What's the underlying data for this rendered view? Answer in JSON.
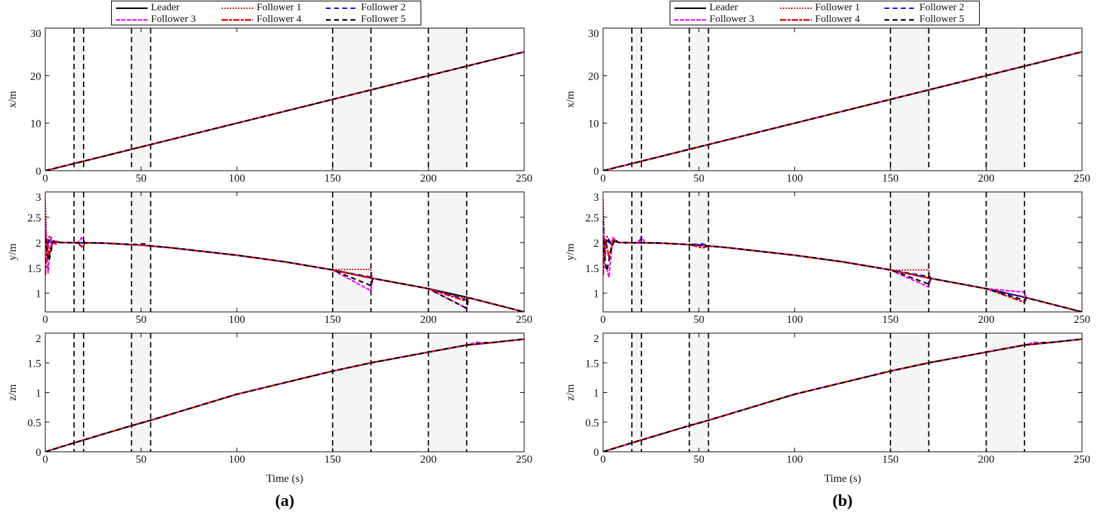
{
  "legend": [
    {
      "name": "Leader",
      "color": "#000000",
      "dash": "",
      "width": 2.2
    },
    {
      "name": "Follower 1",
      "color": "#e00000",
      "dash": "2,2",
      "width": 2
    },
    {
      "name": "Follower 2",
      "color": "#0000ff",
      "dash": "7,5",
      "width": 2
    },
    {
      "name": "Follower 3",
      "color": "#ff00ff",
      "dash": "6,2",
      "width": 2.2
    },
    {
      "name": "Follower 4",
      "color": "#e00000",
      "dash": "9,2,4,2",
      "width": 2.4
    },
    {
      "name": "Follower 5",
      "color": "#000000",
      "dash": "7,5",
      "width": 2.2
    }
  ],
  "shade_color": "#f5f5f5",
  "chart_data": [
    {
      "type": "line",
      "panel_label": "(a)",
      "xlabel": "Time (s)",
      "xlim": [
        0,
        250
      ],
      "xticks": [
        0,
        50,
        100,
        150,
        200,
        250
      ],
      "shaded_intervals": [
        [
          15,
          20
        ],
        [
          45,
          55
        ],
        [
          150,
          170
        ],
        [
          200,
          220
        ]
      ],
      "legend_placement": "top",
      "subplots": [
        {
          "ylabel": "x/m",
          "ylim": [
            0,
            30
          ],
          "yticks": [
            0,
            10,
            20,
            30
          ],
          "leader": [
            [
              0,
              0
            ],
            [
              250,
              25
            ]
          ],
          "follower_deviations": {}
        },
        {
          "ylabel": "y/m",
          "ylim": [
            0.63,
            3
          ],
          "yticks": [
            1,
            1.5,
            2,
            2.5,
            3
          ],
          "leader": [
            [
              0,
              2.05
            ],
            [
              1,
              1.96
            ],
            [
              2,
              2.04
            ],
            [
              4,
              1.98
            ],
            [
              6,
              2.02
            ],
            [
              8,
              2
            ],
            [
              30,
              1.99
            ],
            [
              50,
              1.95
            ],
            [
              65,
              1.9
            ],
            [
              100,
              1.75
            ],
            [
              125,
              1.62
            ],
            [
              150,
              1.46
            ],
            [
              170,
              1.3
            ],
            [
              200,
              1.09
            ],
            [
              220,
              0.92
            ],
            [
              250,
              0.63
            ]
          ],
          "follower_deviations": {
            "Follower 1": [
              [
                0,
                0.8
              ],
              [
                1,
                -0.3
              ],
              [
                2,
                0.1
              ],
              [
                4,
                0
              ],
              [
                150,
                0
              ],
              [
                152,
                0.02
              ],
              [
                160,
                0.09
              ],
              [
                170,
                0.17
              ],
              [
                171,
                0
              ],
              [
                200,
                0
              ],
              [
                220,
                -0.03
              ],
              [
                221,
                0
              ]
            ],
            "Follower 2": [
              [
                0,
                0.35
              ],
              [
                1,
                -0.1
              ],
              [
                2,
                0.05
              ],
              [
                4,
                0
              ],
              [
                150,
                0
              ],
              [
                170,
                0.02
              ],
              [
                171,
                0
              ],
              [
                200,
                0
              ],
              [
                220,
                -0.05
              ],
              [
                221,
                0
              ]
            ],
            "Follower 3": [
              [
                0,
                0.4
              ],
              [
                1.5,
                -0.6
              ],
              [
                3,
                0.1
              ],
              [
                5,
                -0.05
              ],
              [
                7,
                0
              ],
              [
                17,
                0
              ],
              [
                19,
                0.1
              ],
              [
                21,
                0
              ],
              [
                150,
                0
              ],
              [
                170,
                -0.25
              ],
              [
                171,
                0
              ],
              [
                200,
                0
              ],
              [
                220,
                -0.22
              ],
              [
                221,
                0
              ]
            ],
            "Follower 4": [
              [
                0,
                -0.7
              ],
              [
                1,
                0.1
              ],
              [
                2,
                -0.3
              ],
              [
                4,
                0.05
              ],
              [
                6,
                0
              ],
              [
                17,
                0
              ],
              [
                19,
                -0.08
              ],
              [
                21,
                0
              ],
              [
                200,
                0
              ],
              [
                220,
                -0.08
              ],
              [
                221,
                0
              ]
            ],
            "Follower 5": [
              [
                0,
                0.05
              ],
              [
                2,
                -0.4
              ],
              [
                4,
                0.05
              ],
              [
                6,
                0
              ],
              [
                45,
                0
              ],
              [
                52,
                0.03
              ],
              [
                55,
                0
              ],
              [
                150,
                0
              ],
              [
                170,
                -0.15
              ],
              [
                171,
                0
              ],
              [
                200,
                0
              ],
              [
                220,
                -0.22
              ],
              [
                221,
                0
              ]
            ]
          }
        },
        {
          "ylabel": "z/m",
          "ylim": [
            0,
            2
          ],
          "yticks": [
            0,
            0.5,
            1,
            1.5,
            2
          ],
          "leader": [
            [
              0,
              0
            ],
            [
              15,
              0.15
            ],
            [
              45,
              0.44
            ],
            [
              55,
              0.53
            ],
            [
              100,
              0.97
            ],
            [
              150,
              1.36
            ],
            [
              170,
              1.5
            ],
            [
              200,
              1.68
            ],
            [
              220,
              1.8
            ],
            [
              230,
              1.83
            ],
            [
              250,
              1.9
            ]
          ],
          "follower_deviations": {
            "Follower 3": [
              [
                220,
                0
              ],
              [
                225,
                0.03
              ],
              [
                230,
                0
              ]
            ],
            "Follower 5": [
              [
                225,
                0
              ],
              [
                228,
                0.02
              ],
              [
                232,
                0
              ]
            ]
          }
        }
      ]
    },
    {
      "type": "line",
      "panel_label": "(b)",
      "xlabel": "Time (s)",
      "xlim": [
        0,
        250
      ],
      "xticks": [
        0,
        50,
        100,
        150,
        200,
        250
      ],
      "shaded_intervals": [
        [
          15,
          20
        ],
        [
          45,
          55
        ],
        [
          150,
          170
        ],
        [
          200,
          220
        ]
      ],
      "legend_placement": "top",
      "subplots": [
        {
          "ylabel": "x/m",
          "ylim": [
            0,
            30
          ],
          "yticks": [
            0,
            10,
            20,
            30
          ],
          "leader": [
            [
              0,
              0
            ],
            [
              250,
              25
            ]
          ],
          "follower_deviations": {}
        },
        {
          "ylabel": "y/m",
          "ylim": [
            0.63,
            3
          ],
          "yticks": [
            1,
            1.5,
            2,
            2.5,
            3
          ],
          "leader": [
            [
              0,
              2.05
            ],
            [
              1,
              1.96
            ],
            [
              2,
              2.04
            ],
            [
              4,
              1.98
            ],
            [
              6,
              2.02
            ],
            [
              8,
              2
            ],
            [
              30,
              1.99
            ],
            [
              50,
              1.95
            ],
            [
              65,
              1.9
            ],
            [
              100,
              1.75
            ],
            [
              125,
              1.62
            ],
            [
              150,
              1.46
            ],
            [
              170,
              1.3
            ],
            [
              200,
              1.09
            ],
            [
              220,
              0.92
            ],
            [
              250,
              0.63
            ]
          ],
          "follower_deviations": {
            "Follower 1": [
              [
                0,
                0.8
              ],
              [
                1,
                -0.3
              ],
              [
                2,
                0.1
              ],
              [
                4,
                0
              ],
              [
                150,
                0
              ],
              [
                152,
                0.01
              ],
              [
                160,
                0.08
              ],
              [
                170,
                0.16
              ],
              [
                171,
                0
              ]
            ],
            "Follower 2": [
              [
                0,
                0.4
              ],
              [
                1,
                -0.2
              ],
              [
                3,
                0.05
              ],
              [
                5,
                0
              ],
              [
                18,
                0
              ],
              [
                20,
                0.08
              ],
              [
                22,
                0
              ],
              [
                45,
                0
              ],
              [
                52,
                0.03
              ],
              [
                55,
                0
              ],
              [
                150,
                0
              ],
              [
                170,
                0.03
              ],
              [
                171,
                0
              ]
            ],
            "Follower 3": [
              [
                0,
                0.2
              ],
              [
                1,
                -0.4
              ],
              [
                3,
                -0.7
              ],
              [
                5,
                0.1
              ],
              [
                7,
                0
              ],
              [
                18,
                0
              ],
              [
                20,
                0.13
              ],
              [
                22,
                0
              ],
              [
                150,
                0
              ],
              [
                170,
                -0.18
              ],
              [
                171,
                0
              ],
              [
                200,
                0
              ],
              [
                220,
                0.1
              ],
              [
                221,
                0
              ]
            ],
            "Follower 4": [
              [
                0,
                -0.7
              ],
              [
                1,
                0.1
              ],
              [
                3,
                -0.3
              ],
              [
                5,
                0.05
              ],
              [
                7,
                0
              ],
              [
                45,
                0
              ],
              [
                52,
                -0.05
              ],
              [
                55,
                0
              ],
              [
                200,
                0
              ],
              [
                220,
                -0.1
              ],
              [
                221,
                0
              ]
            ],
            "Follower 5": [
              [
                0,
                0
              ],
              [
                2,
                -0.6
              ],
              [
                4,
                -0.15
              ],
              [
                6,
                0.05
              ],
              [
                8,
                0
              ],
              [
                150,
                0
              ],
              [
                170,
                -0.12
              ],
              [
                171,
                0
              ],
              [
                200,
                0
              ],
              [
                220,
                -0.06
              ],
              [
                221,
                0
              ]
            ]
          }
        },
        {
          "ylabel": "z/m",
          "ylim": [
            0,
            2
          ],
          "yticks": [
            0,
            0.5,
            1,
            1.5,
            2
          ],
          "leader": [
            [
              0,
              0
            ],
            [
              15,
              0.15
            ],
            [
              45,
              0.44
            ],
            [
              55,
              0.53
            ],
            [
              100,
              0.97
            ],
            [
              150,
              1.36
            ],
            [
              170,
              1.5
            ],
            [
              200,
              1.68
            ],
            [
              220,
              1.8
            ],
            [
              230,
              1.83
            ],
            [
              250,
              1.9
            ]
          ],
          "follower_deviations": {
            "Follower 3": [
              [
                220,
                0
              ],
              [
                225,
                0.03
              ],
              [
                230,
                0
              ]
            ],
            "Follower 5": [
              [
                225,
                0
              ],
              [
                228,
                0.02
              ],
              [
                232,
                0
              ]
            ]
          }
        }
      ]
    }
  ]
}
